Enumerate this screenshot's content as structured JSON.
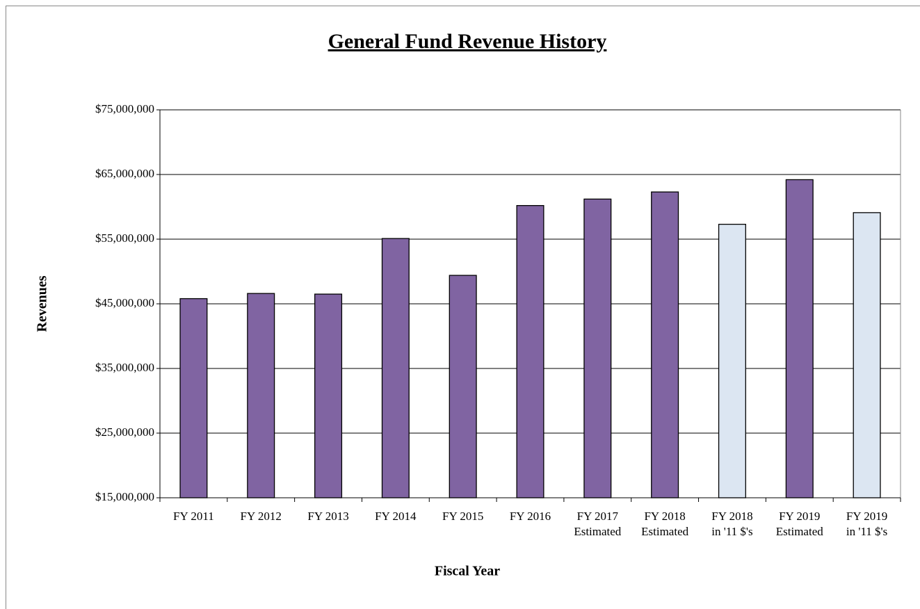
{
  "chart_data": {
    "type": "bar",
    "title": "General Fund Revenue History",
    "x_label": "Fiscal Year",
    "y_label": "Revenues",
    "categories": [
      [
        "FY 2011"
      ],
      [
        "FY 2012"
      ],
      [
        "FY 2013"
      ],
      [
        "FY 2014"
      ],
      [
        "FY 2015"
      ],
      [
        "FY 2016"
      ],
      [
        "FY 2017",
        "Estimated"
      ],
      [
        "FY 2018",
        "Estimated"
      ],
      [
        "FY 2018",
        "in '11 $'s"
      ],
      [
        "FY 2019",
        "Estimated"
      ],
      [
        "FY 2019",
        "in '11 $'s"
      ]
    ],
    "values": [
      45800000,
      46600000,
      46500000,
      55100000,
      49400000,
      60200000,
      61200000,
      62300000,
      57300000,
      64200000,
      59100000
    ],
    "colors": [
      "#8064a2",
      "#8064a2",
      "#8064a2",
      "#8064a2",
      "#8064a2",
      "#8064a2",
      "#8064a2",
      "#8064a2",
      "#dce6f2",
      "#8064a2",
      "#dce6f2"
    ],
    "ylim": [
      15000000,
      75000000
    ],
    "yticks": [
      {
        "value": 15000000,
        "label": "$15,000,000"
      },
      {
        "value": 25000000,
        "label": "$25,000,000"
      },
      {
        "value": 35000000,
        "label": "$35,000,000"
      },
      {
        "value": 45000000,
        "label": "$45,000,000"
      },
      {
        "value": 55000000,
        "label": "$55,000,000"
      },
      {
        "value": 65000000,
        "label": "$65,000,000"
      },
      {
        "value": 75000000,
        "label": "$75,000,000"
      }
    ],
    "grid": true
  }
}
